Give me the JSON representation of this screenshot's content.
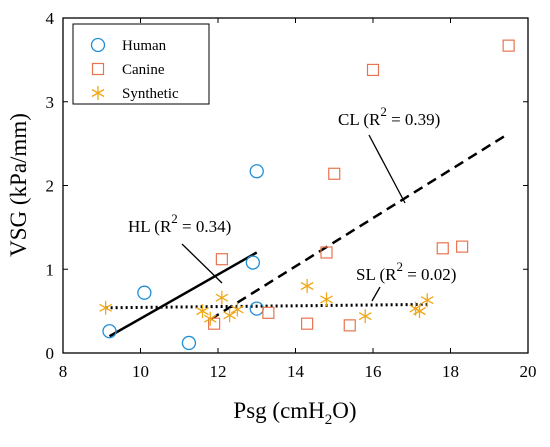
{
  "chart_data": {
    "type": "scatter",
    "title": "",
    "xlabel": {
      "main": "Psg (cmH",
      "sub": "2",
      "tail": "O)"
    },
    "ylabel": "VSG (kPa/mm)",
    "xlim": [
      8,
      20
    ],
    "ylim": [
      0,
      4
    ],
    "xticks": [
      8,
      10,
      12,
      14,
      16,
      18,
      20
    ],
    "yticks": [
      0,
      1,
      2,
      3,
      4
    ],
    "grid": false,
    "legend": "top-left",
    "series": [
      {
        "name": "Human",
        "marker": "circle",
        "color": "#1f8fd6",
        "points": [
          [
            9.2,
            0.26
          ],
          [
            10.1,
            0.72
          ],
          [
            11.25,
            0.12
          ],
          [
            12.9,
            1.08
          ],
          [
            13.0,
            0.53
          ],
          [
            13.0,
            2.17
          ]
        ]
      },
      {
        "name": "Canine",
        "marker": "square",
        "color": "#e8744f",
        "points": [
          [
            11.9,
            0.35
          ],
          [
            12.1,
            1.12
          ],
          [
            13.3,
            0.48
          ],
          [
            14.3,
            0.35
          ],
          [
            14.8,
            1.2
          ],
          [
            15.0,
            2.14
          ],
          [
            15.4,
            0.33
          ],
          [
            16.0,
            3.38
          ],
          [
            17.8,
            1.25
          ],
          [
            18.3,
            1.27
          ],
          [
            19.5,
            3.67
          ]
        ]
      },
      {
        "name": "Synthetic",
        "marker": "asterisk",
        "color": "#f0a818",
        "points": [
          [
            9.1,
            0.54
          ],
          [
            11.6,
            0.5
          ],
          [
            11.8,
            0.41
          ],
          [
            12.1,
            0.66
          ],
          [
            12.3,
            0.45
          ],
          [
            12.5,
            0.52
          ],
          [
            14.3,
            0.8
          ],
          [
            14.8,
            0.64
          ],
          [
            15.8,
            0.44
          ],
          [
            17.1,
            0.53
          ],
          [
            17.2,
            0.5
          ],
          [
            17.4,
            0.63
          ]
        ]
      }
    ],
    "fit_lines": [
      {
        "id": "HL",
        "style": "solid",
        "x": [
          9.2,
          13.0
        ],
        "y": [
          0.2,
          1.2
        ]
      },
      {
        "id": "CL",
        "style": "dashed",
        "x": [
          11.8,
          19.5
        ],
        "y": [
          0.4,
          2.62
        ]
      },
      {
        "id": "SL",
        "style": "dotted",
        "x": [
          9.1,
          17.4
        ],
        "y": [
          0.54,
          0.58
        ]
      }
    ],
    "annotations": [
      {
        "id": "HL",
        "pre": "HL (R",
        "sup": "2",
        "post": " = 0.34)"
      },
      {
        "id": "CL",
        "pre": "CL (R",
        "sup": "2",
        "post": " = 0.39)"
      },
      {
        "id": "SL",
        "pre": "SL (R",
        "sup": "2",
        "post": " = 0.02)"
      }
    ]
  }
}
